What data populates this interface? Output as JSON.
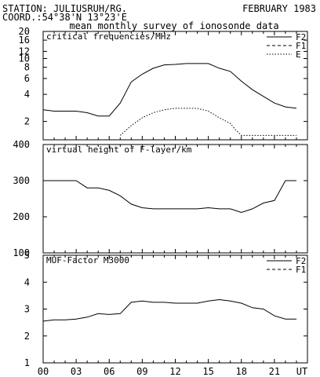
{
  "header": {
    "station": "STATION: JULIUSRUH/RG.",
    "date": "FEBRUARY 1983",
    "coord": "COORD.:54°38'N 13°23'E",
    "subtitle": "mean monthly survey of ionosonde data"
  },
  "chart_data": [
    {
      "type": "line",
      "title": "critical frequencies/MHz",
      "yscale": "log",
      "ylim": [
        1.25,
        20
      ],
      "yticks": [
        2,
        4,
        6,
        8,
        10,
        12,
        16,
        20
      ],
      "legend": "top-right",
      "series": [
        {
          "name": "F2",
          "dash": "solid",
          "x": [
            0,
            1,
            2,
            3,
            4,
            5,
            6,
            7,
            8,
            9,
            10,
            11,
            12,
            13,
            14,
            15,
            16,
            17,
            18,
            19,
            20,
            21,
            22,
            23
          ],
          "values": [
            2.7,
            2.6,
            2.6,
            2.6,
            2.5,
            2.3,
            2.3,
            3.2,
            5.5,
            6.7,
            7.8,
            8.5,
            8.6,
            8.8,
            8.8,
            8.8,
            7.8,
            7.2,
            5.6,
            4.5,
            3.8,
            3.2,
            2.9,
            2.8
          ]
        },
        {
          "name": "F1",
          "dash": "dashed",
          "x": [],
          "values": []
        },
        {
          "name": "E",
          "dash": "dotted",
          "x": [
            7,
            8,
            9,
            10,
            11,
            12,
            13,
            14,
            15,
            16,
            17,
            17.5,
            18,
            19,
            20,
            21,
            22,
            23
          ],
          "values": [
            1.4,
            1.8,
            2.2,
            2.5,
            2.7,
            2.8,
            2.8,
            2.8,
            2.6,
            2.2,
            1.9,
            1.6,
            1.4,
            1.4,
            1.4,
            1.4,
            1.4,
            1.4
          ]
        }
      ]
    },
    {
      "type": "line",
      "title": "virtual height of F-layer/km",
      "ylim": [
        100,
        400
      ],
      "yticks": [
        100,
        200,
        300,
        400
      ],
      "series": [
        {
          "dash": "solid",
          "x": [
            0,
            1,
            2,
            3,
            4,
            5,
            6,
            7,
            8,
            9,
            10,
            11,
            12,
            13,
            14,
            15,
            16,
            17,
            18,
            19,
            20,
            21,
            22,
            23
          ],
          "values": [
            300,
            300,
            300,
            300,
            280,
            280,
            273,
            258,
            235,
            225,
            222,
            222,
            222,
            222,
            222,
            225,
            222,
            222,
            212,
            222,
            238,
            245,
            300,
            300
          ]
        }
      ]
    },
    {
      "type": "line",
      "title": "MUF-Factor M3000",
      "ylim": [
        1,
        5
      ],
      "yticks": [
        1,
        2,
        3,
        4,
        5
      ],
      "legend": "top-right",
      "series": [
        {
          "name": "F2",
          "dash": "solid",
          "x": [
            0,
            1,
            2,
            3,
            4,
            5,
            6,
            7,
            8,
            9,
            10,
            11,
            12,
            13,
            14,
            15,
            16,
            17,
            18,
            19,
            20,
            21,
            22,
            23
          ],
          "values": [
            2.55,
            2.6,
            2.6,
            2.63,
            2.7,
            2.83,
            2.8,
            2.83,
            3.25,
            3.3,
            3.25,
            3.25,
            3.22,
            3.22,
            3.22,
            3.3,
            3.35,
            3.3,
            3.22,
            3.05,
            3.0,
            2.75,
            2.63,
            2.63
          ]
        },
        {
          "name": "F1",
          "dash": "dashed",
          "x": [],
          "values": []
        }
      ]
    }
  ],
  "xaxis": {
    "xlim": [
      0,
      24
    ],
    "ticks": [
      0,
      3,
      6,
      9,
      12,
      15,
      18,
      21
    ],
    "tick_labels": [
      "00",
      "03",
      "06",
      "09",
      "12",
      "15",
      "18",
      "21"
    ],
    "unit_label": "UT"
  }
}
